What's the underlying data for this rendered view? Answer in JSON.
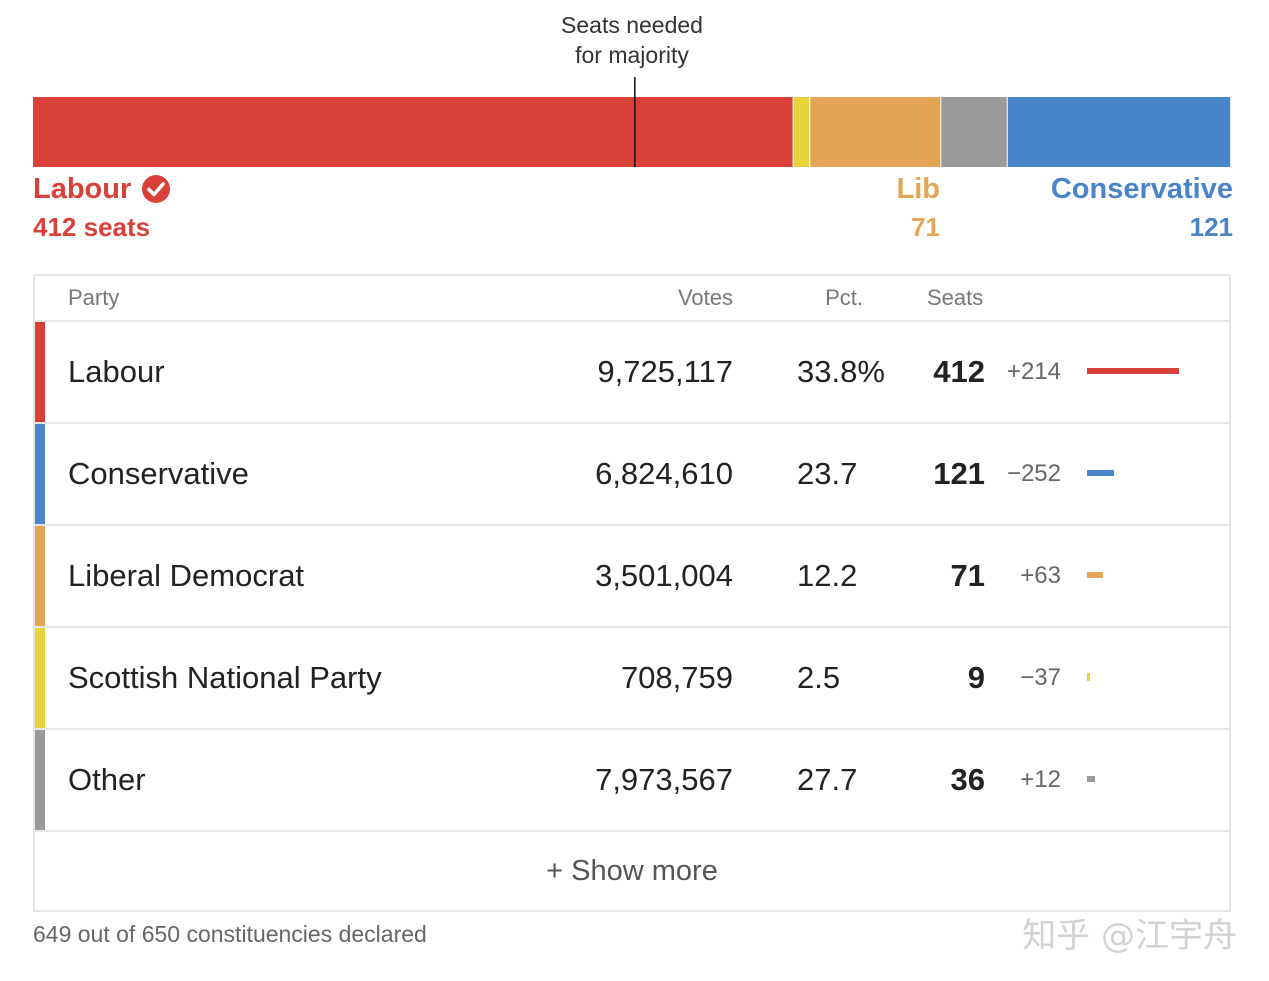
{
  "majority_label": {
    "line1": "Seats needed",
    "line2": "for majority"
  },
  "colors": {
    "labour": "#d9403a",
    "conservative": "#4a84c8",
    "libdem": "#e3a455",
    "snp": "#e6d53a",
    "other": "#9a9a9a"
  },
  "summary": {
    "labour": {
      "name": "Labour",
      "seats": "412 seats"
    },
    "lib": {
      "name": "Lib",
      "seats": "71"
    },
    "conservative": {
      "name": "Conservative",
      "seats": "121"
    }
  },
  "table": {
    "headers": {
      "party": "Party",
      "votes": "Votes",
      "pct": "Pct.",
      "seats": "Seats"
    },
    "show_more": "+ Show more"
  },
  "footnote": "649 out of 650 constituencies declared",
  "watermark": "知乎 @江宇舟",
  "chart_data": {
    "type": "bar",
    "total_seats": 650,
    "majority_seats": 326,
    "series_order": [
      "Labour",
      "SNP",
      "Liberal Democrat",
      "Other",
      "Conservative"
    ],
    "rows": [
      {
        "key": "labour",
        "party": "Labour",
        "votes": "9,725,117",
        "pct": "33.8%",
        "seats": 412,
        "change": "+214"
      },
      {
        "key": "conservative",
        "party": "Conservative",
        "votes": "6,824,610",
        "pct": "23.7",
        "seats": 121,
        "change": "−252"
      },
      {
        "key": "libdem",
        "party": "Liberal Democrat",
        "votes": "3,501,004",
        "pct": "12.2",
        "seats": 71,
        "change": "+63"
      },
      {
        "key": "snp",
        "party": "Scottish National Party",
        "votes": "708,759",
        "pct": "2.5",
        "seats": 9,
        "change": "−37"
      },
      {
        "key": "other",
        "party": "Other",
        "votes": "7,973,567",
        "pct": "27.7",
        "seats": 36,
        "change": "+12"
      }
    ]
  }
}
